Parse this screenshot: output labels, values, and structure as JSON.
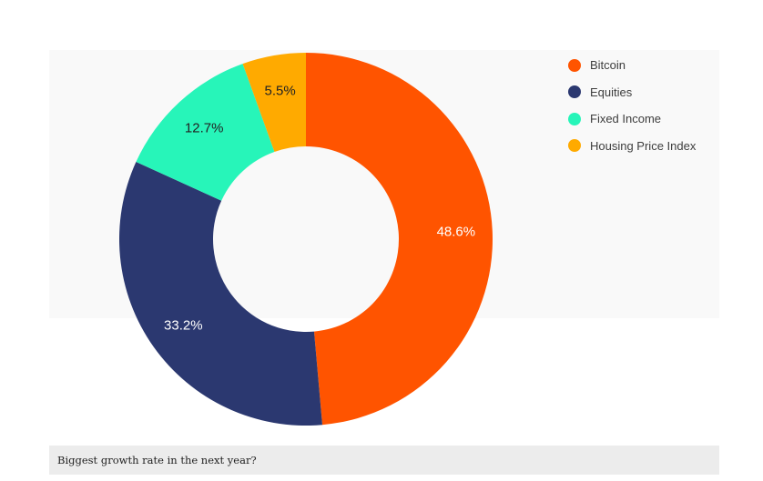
{
  "chart_data": {
    "type": "pie",
    "donut": true,
    "categories": [
      "Bitcoin",
      "Equities",
      "Fixed Income",
      "Housing Price Index"
    ],
    "values": [
      48.6,
      33.2,
      12.7,
      5.5
    ],
    "labels": [
      "48.6%",
      "33.2%",
      "12.7%",
      "5.5%"
    ],
    "colors": [
      "#ff5400",
      "#2b3870",
      "#27f5b9",
      "#ffaa00"
    ],
    "label_colors": [
      "#ffffff",
      "#ffffff",
      "#222222",
      "#222222"
    ],
    "legend_position": "top-right"
  },
  "caption": "Biggest growth rate in the next year?"
}
